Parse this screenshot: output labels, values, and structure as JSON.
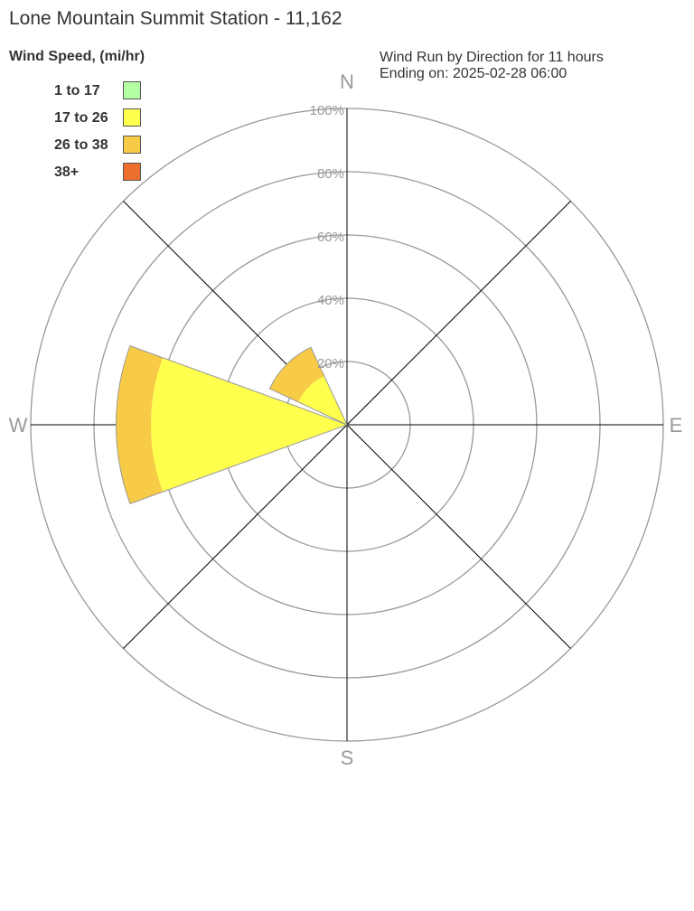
{
  "chart_data": {
    "type": "wind-rose",
    "title": "Lone Mountain Summit Station - 11,162",
    "subtitle_lines": [
      "Wind Run by Direction for 11 hours",
      "Ending on: 2025-02-28 06:00"
    ],
    "legend_title": "Wind Speed, (mi/hr)",
    "legend_placement": "top-left",
    "bins": [
      {
        "label": "1 to 17",
        "color": "#b3ffa3"
      },
      {
        "label": "17 to 26",
        "color": "#ffff4d"
      },
      {
        "label": "26 to 38",
        "color": "#f7cb45"
      },
      {
        "label": "38+",
        "color": "#ec6f2d"
      }
    ],
    "directions": [
      "N",
      "NE",
      "E",
      "SE",
      "S",
      "SW",
      "W",
      "NW"
    ],
    "compass_labels": [
      "N",
      "E",
      "S",
      "W"
    ],
    "radial_ticks": [
      "20%",
      "40%",
      "60%",
      "80%",
      "100%"
    ],
    "radial_max": 100,
    "series": [
      {
        "direction": "W",
        "values": [
          0,
          62,
          11,
          0
        ]
      },
      {
        "direction": "NW",
        "values": [
          0,
          17,
          10,
          0
        ]
      }
    ]
  }
}
